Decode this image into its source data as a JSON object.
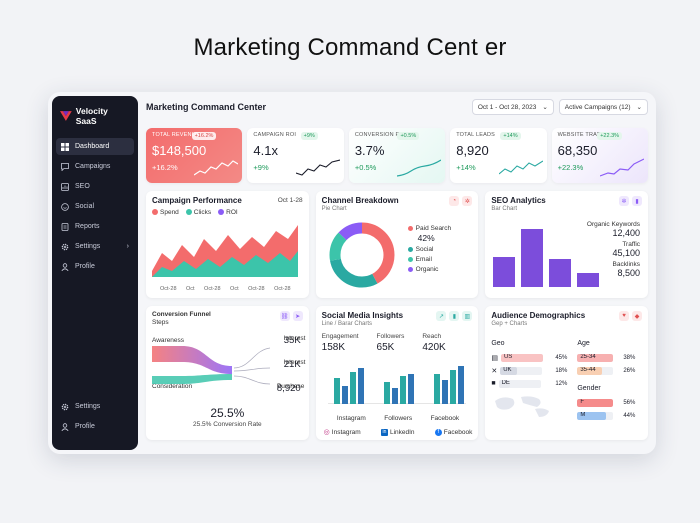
{
  "hero_title": "Marketing Command Cent er",
  "brand": {
    "name": "Velocity SaaS"
  },
  "sidebar": {
    "items": [
      {
        "label": "Dashboard",
        "icon": "grid-icon",
        "active": true
      },
      {
        "label": "Campaigns",
        "icon": "chat-icon"
      },
      {
        "label": "SEO",
        "icon": "seo-icon"
      },
      {
        "label": "Social",
        "icon": "social-icon"
      },
      {
        "label": "Reports",
        "icon": "reports-icon"
      },
      {
        "label": "Settings",
        "icon": "gear-icon",
        "has_chevron": true
      },
      {
        "label": "Profile",
        "icon": "user-icon"
      }
    ],
    "bottom": [
      {
        "label": "Settings",
        "icon": "gear-icon"
      },
      {
        "label": "Profile",
        "icon": "user-icon"
      }
    ]
  },
  "header": {
    "title": "Marketing Command Center",
    "date_range": "Oct 1 - Oct 28, 2023",
    "campaign_filter": "Active Campaigns (12)"
  },
  "kpis": [
    {
      "label": "TOTAL REVENUE",
      "value": "$148,500",
      "change": "+16.2%",
      "badge": "+16.2%",
      "style": "red"
    },
    {
      "label": "CAMPAIGN ROI",
      "value": "4.1x",
      "change": "+9%",
      "badge": "+9%",
      "style": "plain"
    },
    {
      "label": "CONVERSION RATE",
      "value": "3.7%",
      "change": "+0.5%",
      "badge": "+0.5%",
      "style": "mint"
    },
    {
      "label": "TOTAL LEADS",
      "value": "8,920",
      "change": "+14%",
      "badge": "+14%",
      "style": "plain"
    },
    {
      "label": "WEBSITE TRAFFIC",
      "value": "68,350",
      "change": "+22.3%",
      "badge": "+22.3%",
      "style": "purp"
    }
  ],
  "campaign_performance": {
    "title": "Campaign Performance",
    "range": "Oct 1-28",
    "legend": [
      "Spend",
      "Clicks",
      "ROI"
    ],
    "x_ticks": [
      "Oct-28",
      "Oct",
      "Oct-28",
      "Oct",
      "Oct-28",
      "Oct-28"
    ]
  },
  "channel_breakdown": {
    "title": "Channel Breakdown",
    "subtitle": "Pie Chart",
    "legend": [
      "Paid Search",
      "Social",
      "Email",
      "Organic"
    ],
    "highlight": "42%"
  },
  "seo_analytics": {
    "title": "SEO Analytics",
    "subtitle": "Bar Chart",
    "stats": [
      {
        "label": "Organic Keywords",
        "value": "12,400"
      },
      {
        "label": "Traffic",
        "value": "45,100"
      },
      {
        "label": "Backlinks",
        "value": "8,500"
      }
    ]
  },
  "conversion_funnel": {
    "title": "Conversion Funnel",
    "subtitle": "Steps",
    "left_labels": [
      "Awareness",
      "Consideration"
    ],
    "right": [
      {
        "label": "Interest",
        "value": "35K"
      },
      {
        "label": "Interest",
        "value": "21K"
      },
      {
        "label": "Purchase",
        "value": "8,920"
      }
    ],
    "rate_big": "25.5%",
    "rate_caption": "25.5% Conversion Rate"
  },
  "social_insights": {
    "title": "Social Media Insights",
    "subtitle": "Line / Barar Charts",
    "metrics": [
      {
        "label": "Engagement",
        "value": "158K"
      },
      {
        "label": "Followers",
        "value": "65K"
      },
      {
        "label": "Reach",
        "value": "420K"
      }
    ],
    "bar_groups": [
      "Instagram",
      "Followers",
      "Facebook"
    ],
    "links": [
      "Instagram",
      "LinkedIn",
      "Facebook"
    ]
  },
  "audience": {
    "title": "Audience Demographics",
    "subtitle": "Gep + Charts",
    "geo_title": "Geo",
    "geo": [
      {
        "code": "US",
        "pct": "45%",
        "value": 45,
        "color": "#f36c6c"
      },
      {
        "code": "UK",
        "pct": "18%",
        "value": 18,
        "color": "#9aa3b5"
      },
      {
        "code": "DE",
        "pct": "12%",
        "value": 12,
        "color": "#9aa3b5"
      }
    ],
    "age_title": "Age",
    "age": [
      {
        "label": "25-34",
        "pct": "38%",
        "value": 38,
        "color": "#f5a3a3"
      },
      {
        "label": "35-44",
        "pct": "26%",
        "value": 26,
        "color": "#f7c3a0"
      }
    ],
    "gender_title": "Gender",
    "gender": [
      {
        "label": "F",
        "pct": "56%",
        "value": 56,
        "color": "#f58b8b"
      },
      {
        "label": "M",
        "pct": "44%",
        "value": 44,
        "color": "#9cc3f0"
      }
    ]
  },
  "colors": {
    "spend": "#f36c6c",
    "clicks": "#3cc4aa",
    "roi": "#8b5cf6",
    "blue": "#2f74b5",
    "teal": "#2aa9a2"
  }
}
